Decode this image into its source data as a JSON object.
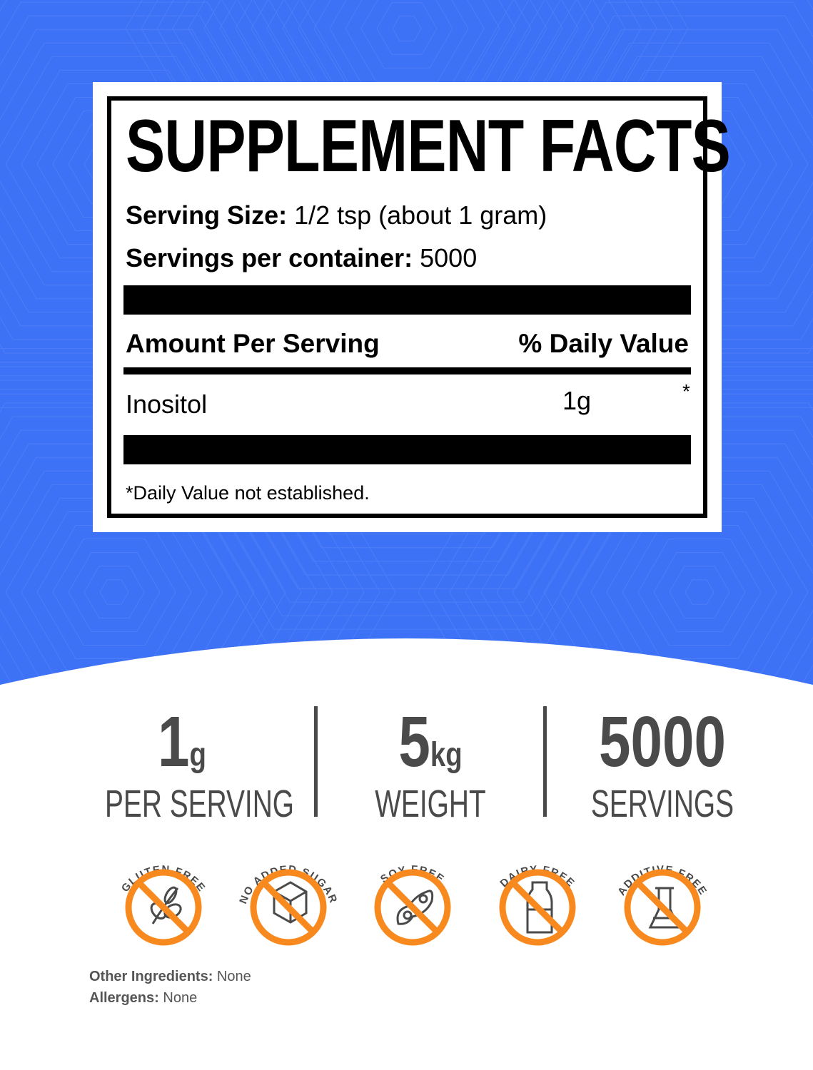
{
  "colors": {
    "background": "#3d71f6",
    "icon_accent": "#f7891f",
    "stat_text": "#4a4a4a"
  },
  "label": {
    "title": "SUPPLEMENT FACTS",
    "serving_size_label": "Serving Size:",
    "serving_size_value": "1/2 tsp (about 1 gram)",
    "servings_label": "Servings per container:",
    "servings_value": "5000",
    "amount_header": "Amount Per Serving",
    "dv_header": "% Daily Value",
    "ingredient": {
      "name": "Inositol",
      "amount": "1g",
      "dv": "*"
    },
    "footnote": "*Daily Value not established."
  },
  "stats": [
    {
      "value": "1",
      "unit": "g",
      "label": "PER SERVING"
    },
    {
      "value": "5",
      "unit": "kg",
      "label": "WEIGHT"
    },
    {
      "value": "5000",
      "unit": "",
      "label": "SERVINGS"
    }
  ],
  "badges": [
    {
      "text": "GLUTEN FREE",
      "icon": "wheat-icon"
    },
    {
      "text": "NO ADDED SUGAR",
      "icon": "sugar-cube-icon"
    },
    {
      "text": "SOY FREE",
      "icon": "soybean-icon"
    },
    {
      "text": "DAIRY FREE",
      "icon": "milk-bottle-icon"
    },
    {
      "text": "ADDITIVE FREE",
      "icon": "flask-icon"
    }
  ],
  "other_ingredients": {
    "label": "Other Ingredients:",
    "value": "None"
  },
  "allergens": {
    "label": "Allergens:",
    "value": "None"
  }
}
